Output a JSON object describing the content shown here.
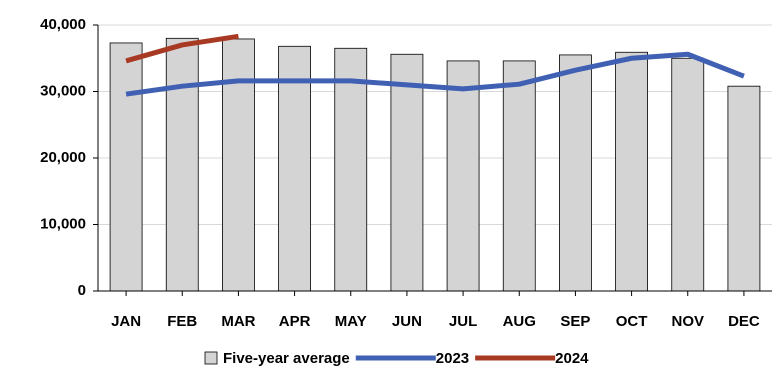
{
  "chart_data": {
    "type": "bar-line",
    "categories": [
      "JAN",
      "FEB",
      "MAR",
      "APR",
      "MAY",
      "JUN",
      "JUL",
      "AUG",
      "SEP",
      "OCT",
      "NOV",
      "DEC"
    ],
    "series": [
      {
        "name": "Five-year average",
        "type": "bar",
        "color": "#d4d4d4",
        "values": [
          37300,
          38000,
          37900,
          36800,
          36500,
          35600,
          34600,
          34600,
          35500,
          35900,
          35000,
          30800
        ]
      },
      {
        "name": "2023",
        "type": "line",
        "color": "#4060b4",
        "values": [
          29600,
          30800,
          31600,
          31600,
          31600,
          31000,
          30400,
          31100,
          33200,
          35000,
          35600,
          32300
        ]
      },
      {
        "name": "2024",
        "type": "line",
        "color": "#a83a24",
        "values": [
          34600,
          37000,
          38300,
          null,
          null,
          null,
          null,
          null,
          null,
          null,
          null,
          null
        ]
      }
    ],
    "ylim": [
      0,
      40000
    ],
    "yticks": [
      0,
      {
        "value": 10000,
        "label": "10,000"
      },
      {
        "value": 20000,
        "label": "20,000"
      },
      {
        "value": 30000,
        "label": "30,000"
      },
      {
        "value": 40000,
        "label": "40,000"
      }
    ],
    "grid": true
  }
}
